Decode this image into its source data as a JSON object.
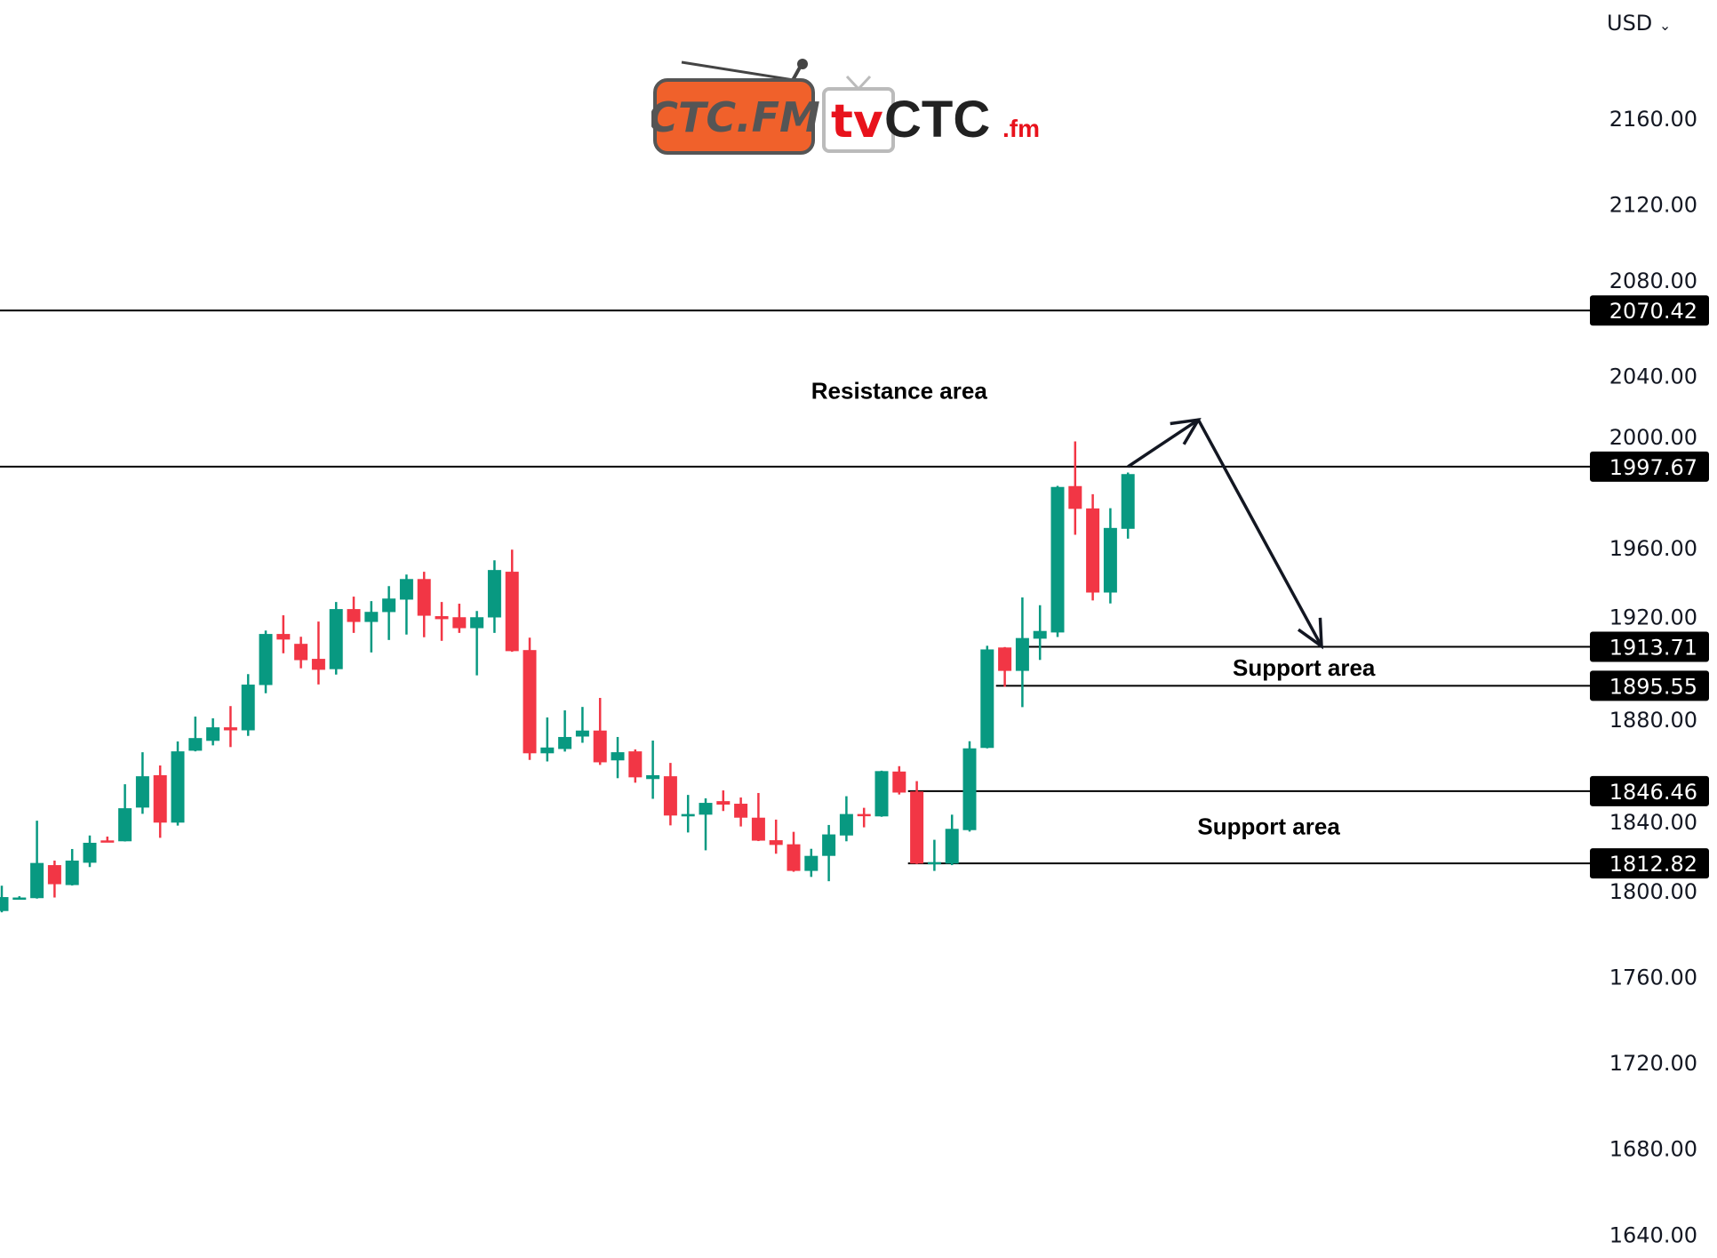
{
  "currency_selector": {
    "label": "USD",
    "icon": "chevron-down-icon"
  },
  "logo": {
    "left_text": "CTC.FM",
    "right_text_tv": "tv",
    "right_text_main": "CTC",
    "right_text_suffix": ".fm"
  },
  "colors": {
    "up": "#089981",
    "down": "#f23645",
    "lines": "#000000",
    "label_bg": "#000000"
  },
  "chart_data": {
    "type": "candlestick",
    "y_axis": {
      "ticks": [
        2160,
        2120,
        2080,
        2040,
        2000,
        1960,
        1920,
        1880,
        1840,
        1800,
        1760,
        1720,
        1680,
        1640
      ],
      "tick_labels": [
        "2160.00",
        "2120.00",
        "2080.00",
        "2040.00",
        "2000.00",
        "1960.00",
        "1920.00",
        "1880.00",
        "1840.00",
        "1800.00",
        "1760.00",
        "1720.00",
        "1680.00",
        "1640.00"
      ],
      "ylim": [
        1630,
        2190
      ],
      "position": "right"
    },
    "grid": false,
    "candles_ohlc": [
      [
        1790.6,
        1802.4,
        1790.0,
        1797.1
      ],
      [
        1796.3,
        1797.5,
        1796.0,
        1796.9
      ],
      [
        1796.6,
        1832.7,
        1796.4,
        1813.0
      ],
      [
        1812.0,
        1814.1,
        1796.9,
        1803.1
      ],
      [
        1802.7,
        1819.5,
        1802.5,
        1814.1
      ],
      [
        1813.1,
        1825.8,
        1811.1,
        1822.4
      ],
      [
        1823.5,
        1825.3,
        1822.6,
        1822.8
      ],
      [
        1823.1,
        1849.7,
        1823.0,
        1838.5
      ],
      [
        1838.8,
        1864.6,
        1835.9,
        1853.4
      ],
      [
        1853.9,
        1858.4,
        1824.7,
        1831.8
      ],
      [
        1831.8,
        1869.6,
        1830.4,
        1865.0
      ],
      [
        1865.3,
        1881.2,
        1865.0,
        1871.2
      ],
      [
        1869.9,
        1880.4,
        1867.8,
        1876.2
      ],
      [
        1876.2,
        1886.1,
        1867.0,
        1874.8
      ],
      [
        1874.8,
        1901.0,
        1872.2,
        1896.1
      ],
      [
        1895.9,
        1921.3,
        1892.1,
        1919.7
      ],
      [
        1919.7,
        1928.4,
        1910.7,
        1917.1
      ],
      [
        1915.1,
        1918.4,
        1903.7,
        1907.5
      ],
      [
        1908.1,
        1925.5,
        1896.2,
        1903.0
      ],
      [
        1903.3,
        1934.6,
        1900.8,
        1931.3
      ],
      [
        1931.3,
        1937.1,
        1920.2,
        1925.3
      ],
      [
        1925.3,
        1935.0,
        1911.1,
        1930.0
      ],
      [
        1929.9,
        1942.0,
        1916.9,
        1936.2
      ],
      [
        1935.7,
        1947.4,
        1919.4,
        1945.3
      ],
      [
        1945.3,
        1948.7,
        1918.2,
        1928.2
      ],
      [
        1928.0,
        1934.6,
        1916.5,
        1926.6
      ],
      [
        1927.5,
        1933.8,
        1920.2,
        1922.4
      ],
      [
        1922.4,
        1930.4,
        1900.4,
        1927.5
      ],
      [
        1927.4,
        1954.0,
        1920.2,
        1949.5
      ],
      [
        1948.7,
        1959.0,
        1911.4,
        1911.7
      ],
      [
        1912.2,
        1918.0,
        1861.0,
        1864.1
      ],
      [
        1864.1,
        1880.8,
        1860.3,
        1866.8
      ],
      [
        1866.1,
        1884.1,
        1864.9,
        1871.7
      ],
      [
        1871.9,
        1885.7,
        1869.0,
        1874.7
      ],
      [
        1874.7,
        1889.9,
        1858.7,
        1859.9
      ],
      [
        1860.8,
        1871.7,
        1852.5,
        1864.6
      ],
      [
        1865.0,
        1865.9,
        1850.4,
        1852.9
      ],
      [
        1852.1,
        1870.0,
        1842.9,
        1853.9
      ],
      [
        1853.4,
        1859.6,
        1830.5,
        1835.1
      ],
      [
        1834.7,
        1844.7,
        1827.2,
        1835.8
      ],
      [
        1835.5,
        1843.1,
        1818.9,
        1841.0
      ],
      [
        1841.8,
        1846.8,
        1837.2,
        1840.2
      ],
      [
        1840.6,
        1843.5,
        1830.0,
        1834.1
      ],
      [
        1834.1,
        1845.6,
        1823.2,
        1823.4
      ],
      [
        1823.6,
        1833.2,
        1817.3,
        1821.4
      ],
      [
        1821.7,
        1827.5,
        1808.9,
        1809.3
      ],
      [
        1809.3,
        1819.6,
        1806.5,
        1816.3
      ],
      [
        1816.3,
        1830.7,
        1804.5,
        1826.3
      ],
      [
        1825.8,
        1844.1,
        1823.1,
        1835.8
      ],
      [
        1835.8,
        1838.7,
        1829.6,
        1834.8
      ],
      [
        1834.7,
        1856.0,
        1834.5,
        1855.8
      ],
      [
        1855.6,
        1858.1,
        1844.9,
        1845.8
      ],
      [
        1846.3,
        1851.1,
        1812.5,
        1812.7
      ],
      [
        1812.7,
        1823.8,
        1809.3,
        1813.4
      ],
      [
        1812.7,
        1835.5,
        1812.0,
        1828.9
      ],
      [
        1828.3,
        1869.7,
        1827.6,
        1866.4
      ],
      [
        1866.6,
        1914.2,
        1866.4,
        1912.5
      ],
      [
        1913.4,
        1913.6,
        1895.1,
        1902.5
      ],
      [
        1902.5,
        1936.7,
        1885.6,
        1917.8
      ],
      [
        1917.5,
        1933.1,
        1907.6,
        1921.1
      ],
      [
        1920.4,
        1988.7,
        1918.3,
        1988.2
      ],
      [
        1988.6,
        2009.4,
        1965.9,
        1978.0
      ],
      [
        1978.2,
        1984.8,
        1935.3,
        1939.0
      ],
      [
        1939.0,
        1978.3,
        1933.9,
        1969.1
      ],
      [
        1968.7,
        1994.9,
        1964.1,
        1994.2
      ]
    ],
    "horizontal_levels": [
      {
        "value": 2070.42,
        "label": "2070.42",
        "start_candle": 0
      },
      {
        "value": 1997.67,
        "label": "1997.67",
        "start_candle": 0
      },
      {
        "value": 1913.71,
        "label": "1913.71",
        "start_candle": 58
      },
      {
        "value": 1895.55,
        "label": "1895.55",
        "start_candle": 56.5
      },
      {
        "value": 1846.46,
        "label": "1846.46",
        "start_candle": 51.5
      },
      {
        "value": 1812.82,
        "label": "1812.82",
        "start_candle": 51.5
      }
    ],
    "annotations": [
      {
        "text": "Resistance area",
        "value": 2033,
        "candle": 51
      },
      {
        "text": "Support area",
        "value": 1904,
        "candle": 74
      },
      {
        "text": "Support area",
        "value": 1830,
        "candle": 72
      }
    ],
    "projection_arrow": [
      [
        64,
        1997.67
      ],
      [
        68,
        2019.5
      ],
      [
        75,
        1914
      ]
    ]
  }
}
